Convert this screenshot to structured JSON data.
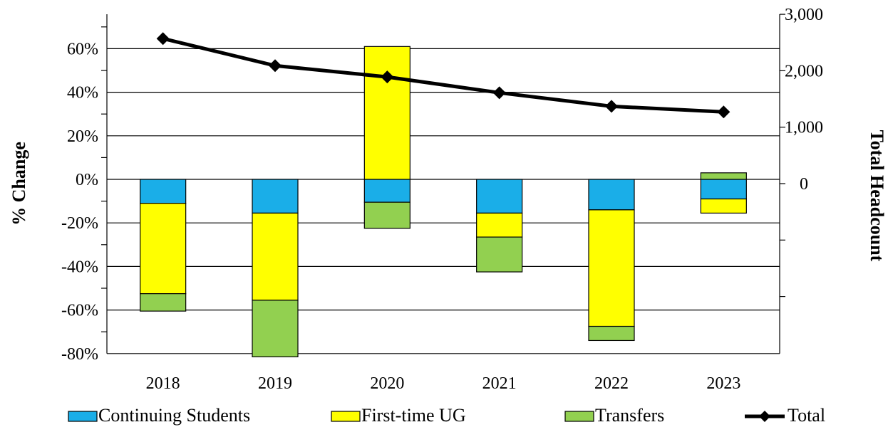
{
  "chart_data": {
    "type": "bar",
    "stacked": true,
    "categories": [
      "2018",
      "2019",
      "2020",
      "2021",
      "2022",
      "2023"
    ],
    "series": [
      {
        "name": "Continuing Students",
        "color": "#1AAEE8",
        "values": [
          -11,
          -15.5,
          -10.5,
          -15.5,
          -14,
          -9
        ]
      },
      {
        "name": "First-time UG",
        "color": "#FFFF00",
        "values": [
          -41.5,
          -40,
          61,
          -11,
          -53.5,
          -6.5
        ]
      },
      {
        "name": "Transfers",
        "color": "#92D050",
        "values": [
          -8,
          -26,
          -12,
          -16,
          -6.5,
          3
        ]
      }
    ],
    "line_series": {
      "name": "Total",
      "color": "#000000",
      "axis": "right",
      "values": [
        2570,
        2090,
        1890,
        1610,
        1370,
        1270
      ]
    },
    "ylabel": "% Change",
    "ylabel_right": "Total Headcount",
    "ylim": [
      -80,
      80
    ],
    "ylim_right": [
      -3000,
      3000
    ],
    "yticks": [
      60,
      40,
      20,
      0,
      -20,
      -40,
      -60,
      -80
    ],
    "ytick_labels": [
      "60%",
      "40%",
      "20%",
      "0%",
      "-20%",
      "-40%",
      "-60%",
      "-80%"
    ],
    "yticks_right": [
      3000,
      2000,
      1000,
      0,
      -1000,
      -2000
    ],
    "ytick_labels_right": [
      "3,000",
      "2,000",
      "1,000",
      "0",
      "",
      ""
    ],
    "grid": true,
    "legend_position": "bottom"
  }
}
